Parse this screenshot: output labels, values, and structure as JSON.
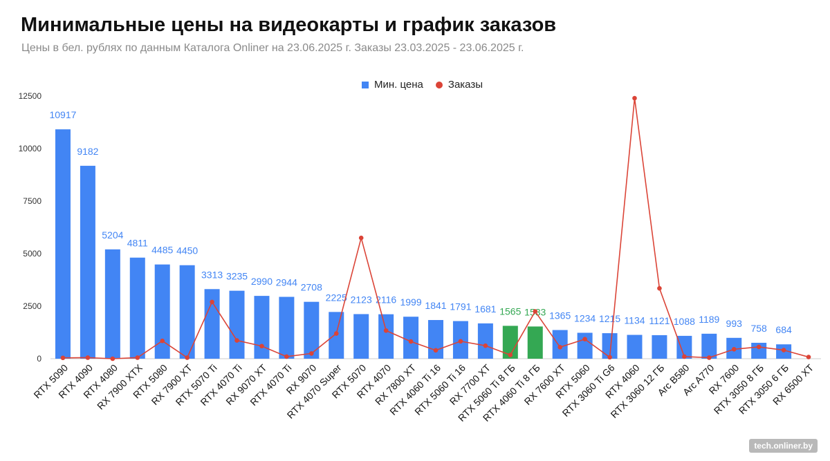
{
  "header": {
    "title": "Минимальные цены на видеокарты и график заказов",
    "subtitle": "Цены в бел. рублях по данным Каталога Onliner на 23.06.2025 г. Заказы 23.03.2025 - 23.06.2025 г."
  },
  "legend": {
    "bar_label": "Мин. цена",
    "line_label": "Заказы"
  },
  "watermark": "tech.onliner.by",
  "colors": {
    "bar": "#4285f4",
    "bar_highlight": "#34a853",
    "line": "#db4437",
    "label_blue": "#4285f4",
    "label_green": "#34a853"
  },
  "chart_data": {
    "type": "bar",
    "title": "Минимальные цены на видеокарты и график заказов",
    "xlabel": "",
    "ylabel": "",
    "ylim": [
      0,
      12500
    ],
    "yticks": [
      0,
      2500,
      5000,
      7500,
      10000,
      12500
    ],
    "legend_position": "top-center",
    "categories": [
      "RTX 5090",
      "RTX 4090",
      "RTX 4080",
      "RX 7900 XTX",
      "RTX 5080",
      "RX 7900 XT",
      "RTX 5070 Ti",
      "RTX 4070 Ti",
      "RX 9070 XT",
      "RTX 4070 Ti",
      "RX 9070",
      "RTX 4070 Super",
      "RTX 5070",
      "RTX 4070",
      "RX 7800 XT",
      "RTX 4060 Ti 16",
      "RTX 5060 Ti 16",
      "RX 7700 XT",
      "RTX 5060 Ti 8 ГБ",
      "RTX 4060 Ti 8 ГБ",
      "RX 7600 XT",
      "RTX 5060",
      "RTX 3060 Ti G6",
      "RTX 4060",
      "RTX 3060 12 ГБ",
      "Arc B580",
      "Arc A770",
      "RX 7600",
      "RTX 3050 8 ГБ",
      "RTX 3050 6 ГБ",
      "RX 6500 XT"
    ],
    "series": [
      {
        "name": "Мин. цена",
        "type": "bar",
        "values": [
          10917,
          9182,
          5204,
          4811,
          4485,
          4450,
          3313,
          3235,
          2990,
          2944,
          2708,
          2225,
          2123,
          2116,
          1999,
          1841,
          1791,
          1681,
          1565,
          1533,
          1365,
          1234,
          1215,
          1134,
          1121,
          1088,
          1189,
          993,
          758,
          684,
          null
        ],
        "labels": [
          "10917",
          "9182",
          "5204",
          "4811",
          "4485",
          "4450",
          "3313",
          "3235",
          "2990",
          "2944",
          "2708",
          "2225",
          "2123",
          "2116",
          "1999",
          "1841",
          "1791",
          "1681",
          "1565",
          "1533",
          "1365",
          "1234",
          "1215",
          "1134",
          "1121",
          "1088",
          "1189",
          "993",
          "758",
          "684",
          ""
        ],
        "highlight": [
          false,
          false,
          false,
          false,
          false,
          false,
          false,
          false,
          false,
          false,
          false,
          false,
          false,
          false,
          false,
          false,
          false,
          false,
          true,
          true,
          false,
          false,
          false,
          false,
          false,
          false,
          false,
          false,
          false,
          false,
          false
        ]
      },
      {
        "name": "Заказы",
        "type": "line",
        "values": [
          40,
          50,
          0,
          50,
          850,
          50,
          2700,
          870,
          600,
          100,
          250,
          1200,
          5750,
          1340,
          820,
          400,
          830,
          620,
          180,
          2250,
          550,
          930,
          70,
          12400,
          3350,
          100,
          50,
          450,
          560,
          410,
          80
        ]
      }
    ]
  }
}
